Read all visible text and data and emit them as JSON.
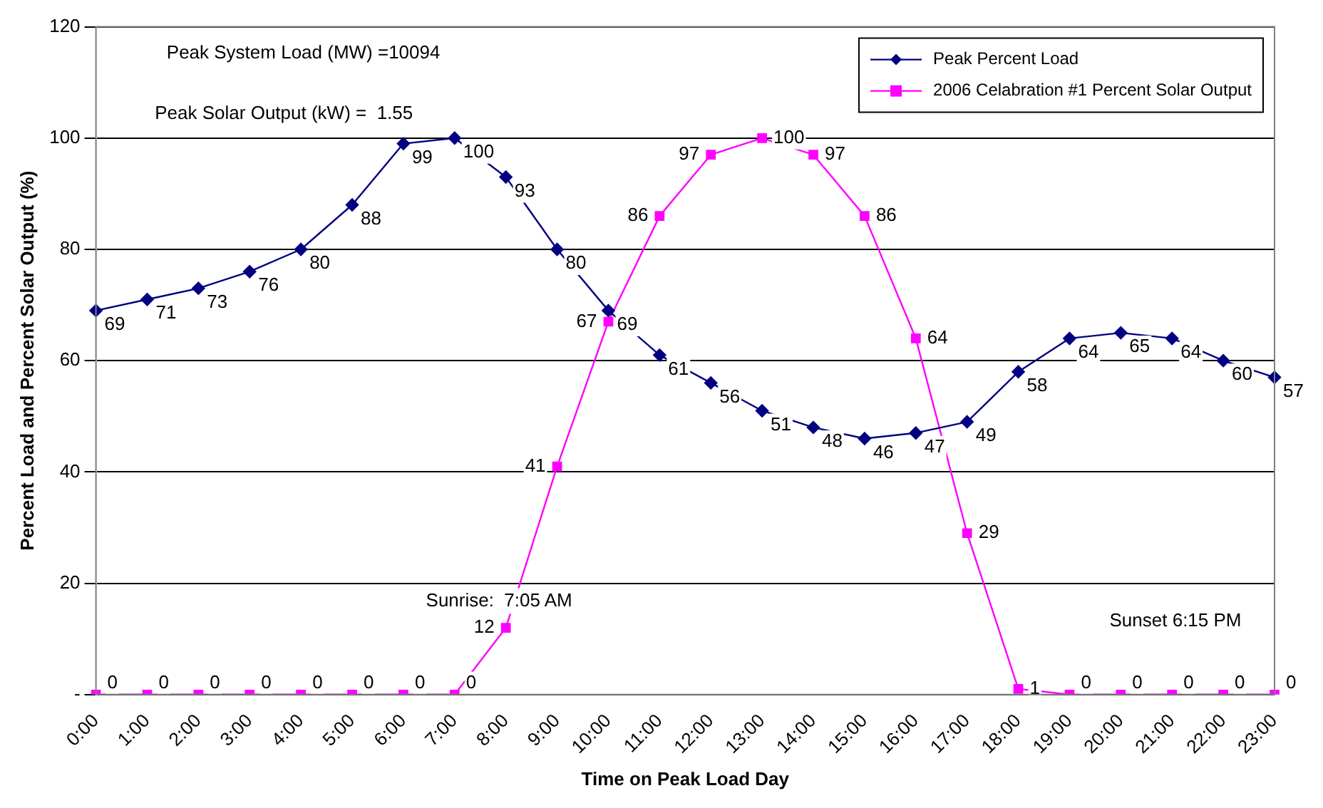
{
  "chart_data": {
    "type": "line",
    "xlabel": "Time on Peak Load Day",
    "ylabel": "Percent Load and Percent Solar Output (%)",
    "categories": [
      "0:00",
      "1:00",
      "2:00",
      "3:00",
      "4:00",
      "5:00",
      "6:00",
      "7:00",
      "8:00",
      "9:00",
      "10:00",
      "11:00",
      "12:00",
      "13:00",
      "14:00",
      "15:00",
      "16:00",
      "17:00",
      "18:00",
      "19:00",
      "20:00",
      "21:00",
      "22:00",
      "23:00"
    ],
    "series": [
      {
        "name": "Peak Percent Load",
        "color": "#000080",
        "marker": "diamond",
        "values": [
          69,
          71,
          73,
          76,
          80,
          88,
          99,
          100,
          93,
          80,
          69,
          61,
          56,
          51,
          48,
          46,
          47,
          49,
          58,
          64,
          65,
          64,
          60,
          57
        ]
      },
      {
        "name": "2006 Celabration #1 Percent Solar Output",
        "color": "#ff00ff",
        "marker": "square",
        "values": [
          0,
          0,
          0,
          0,
          0,
          0,
          0,
          0,
          12,
          41,
          67,
          86,
          97,
          100,
          97,
          86,
          64,
          29,
          1,
          0,
          0,
          0,
          0,
          0
        ]
      }
    ],
    "ylim": [
      0,
      120
    ],
    "yticks": [
      {
        "value": 0,
        "label": "-"
      },
      20,
      40,
      60,
      80,
      100,
      120
    ],
    "grid": "y",
    "legend": "top right",
    "data_labels": true,
    "annotations": [
      "Peak System Load (MW) =10094",
      "Peak Solar Output (kW) =  1.55",
      "Sunrise:  7:05 AM",
      "Sunset 6:15 PM"
    ]
  }
}
